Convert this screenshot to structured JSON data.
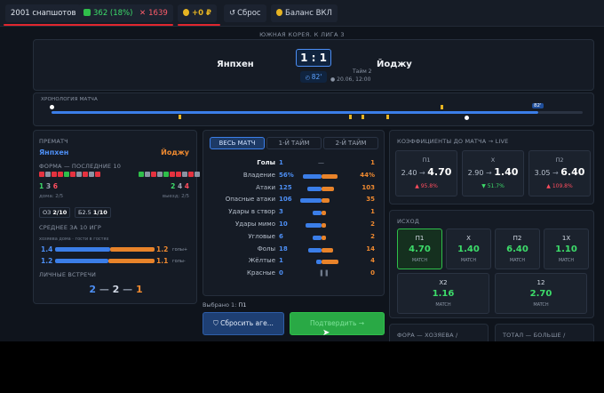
{
  "topbar": {
    "snapshots": "2001 снапшотов",
    "wins": "362 (18%)",
    "losses": "1639",
    "profit": "+0 ₽",
    "reset": "Сброс",
    "balance": "Баланс ВКЛ"
  },
  "match": {
    "league": "ЮЖНАЯ КОРЕЯ. К ЛИГА 3",
    "home": "Янпхен",
    "away": "Йоджу",
    "score": "1 : 1",
    "minute": "82'",
    "half": "Тайм 2",
    "datetime": "20.06, 12:00",
    "timeline_label": "ХРОНОЛОГИЯ МАТЧА",
    "timeline_marker": "82'"
  },
  "prematch": {
    "title": "ПРЕМАТЧ",
    "home": "Янпхен",
    "away": "Йоджу",
    "form_title": "ФОРМА — ПОСЛЕДНИЕ 10",
    "home_wdl": [
      "1",
      "3",
      "6"
    ],
    "away_wdl": [
      "2",
      "4",
      "4"
    ],
    "home_form": "дома: 2/5",
    "away_form": "выезд: 2/5",
    "ou_label": "ОЗ",
    "ou_value": "2/10",
    "btts_label": "Б2.5",
    "btts_value": "1/10",
    "avg_title": "СРЕДНЕЕ ЗА 10 ИГР",
    "avg_sub": "хозяева дома · гости в гостях",
    "home_avg_for": "1.4",
    "home_avg_against": "1.2",
    "away_avg_for": "1.2",
    "away_avg_against": "1.1",
    "goals_for": "голы+",
    "goals_against": "голы-",
    "h2h_title": "ЛИЧНЫЕ ВСТРЕЧИ",
    "h2h": [
      "2",
      "2",
      "1"
    ]
  },
  "stats": {
    "tabs": [
      "ВЕСЬ МАТЧ",
      "1-Й ТАЙМ",
      "2-Й ТАЙМ"
    ],
    "rows": [
      {
        "label": "Голы",
        "home": "1",
        "away": "1"
      },
      {
        "label": "Владение",
        "home": "56%",
        "away": "44%"
      },
      {
        "label": "Атаки",
        "home": "125",
        "away": "103"
      },
      {
        "label": "Опасные атаки",
        "home": "106",
        "away": "35"
      },
      {
        "label": "Удары в створ",
        "home": "3",
        "away": "1"
      },
      {
        "label": "Удары мимо",
        "home": "10",
        "away": "2"
      },
      {
        "label": "Угловые",
        "home": "6",
        "away": "2"
      },
      {
        "label": "Фолы",
        "home": "18",
        "away": "14"
      },
      {
        "label": "Жёлтые",
        "home": "1",
        "away": "4"
      },
      {
        "label": "Красные",
        "home": "0",
        "away": "0"
      }
    ],
    "selected_label": "Выбрано 1:",
    "selected_value": "П1",
    "reset_btn": "Сбросить аге...",
    "confirm_btn": "Подтвердить →"
  },
  "prematch_odds": {
    "title": "КОЭФФИЦИЕНТЫ ДО МАТЧА → LIVE",
    "items": [
      {
        "label": "П1",
        "from": "2.40",
        "to": "4.70",
        "delta": "▲ 95.8%",
        "color": "#ff4d5e"
      },
      {
        "label": "Х",
        "from": "2.90",
        "to": "1.40",
        "delta": "▼ 51.7%",
        "color": "#3ddc6a"
      },
      {
        "label": "П2",
        "from": "3.05",
        "to": "6.40",
        "delta": "▲ 109.8%",
        "color": "#ff4d5e"
      }
    ]
  },
  "outcome": {
    "title": "ИСХОД",
    "items": [
      {
        "label": "П1",
        "value": "4.70",
        "sub": "MATCH"
      },
      {
        "label": "Х",
        "value": "1.40",
        "sub": "MATCH"
      },
      {
        "label": "П2",
        "value": "6.40",
        "sub": "MATCH"
      },
      {
        "label": "1Х",
        "value": "1.10",
        "sub": "MATCH"
      },
      {
        "label": "Х2",
        "value": "1.16",
        "sub": "MATCH"
      },
      {
        "label": "12",
        "value": "2.70",
        "sub": "MATCH"
      }
    ],
    "handicap_title": "ФОРА — ХОЗЯЕВА /",
    "total_title": "ТОТАЛ — БОЛЬШЕ /"
  }
}
